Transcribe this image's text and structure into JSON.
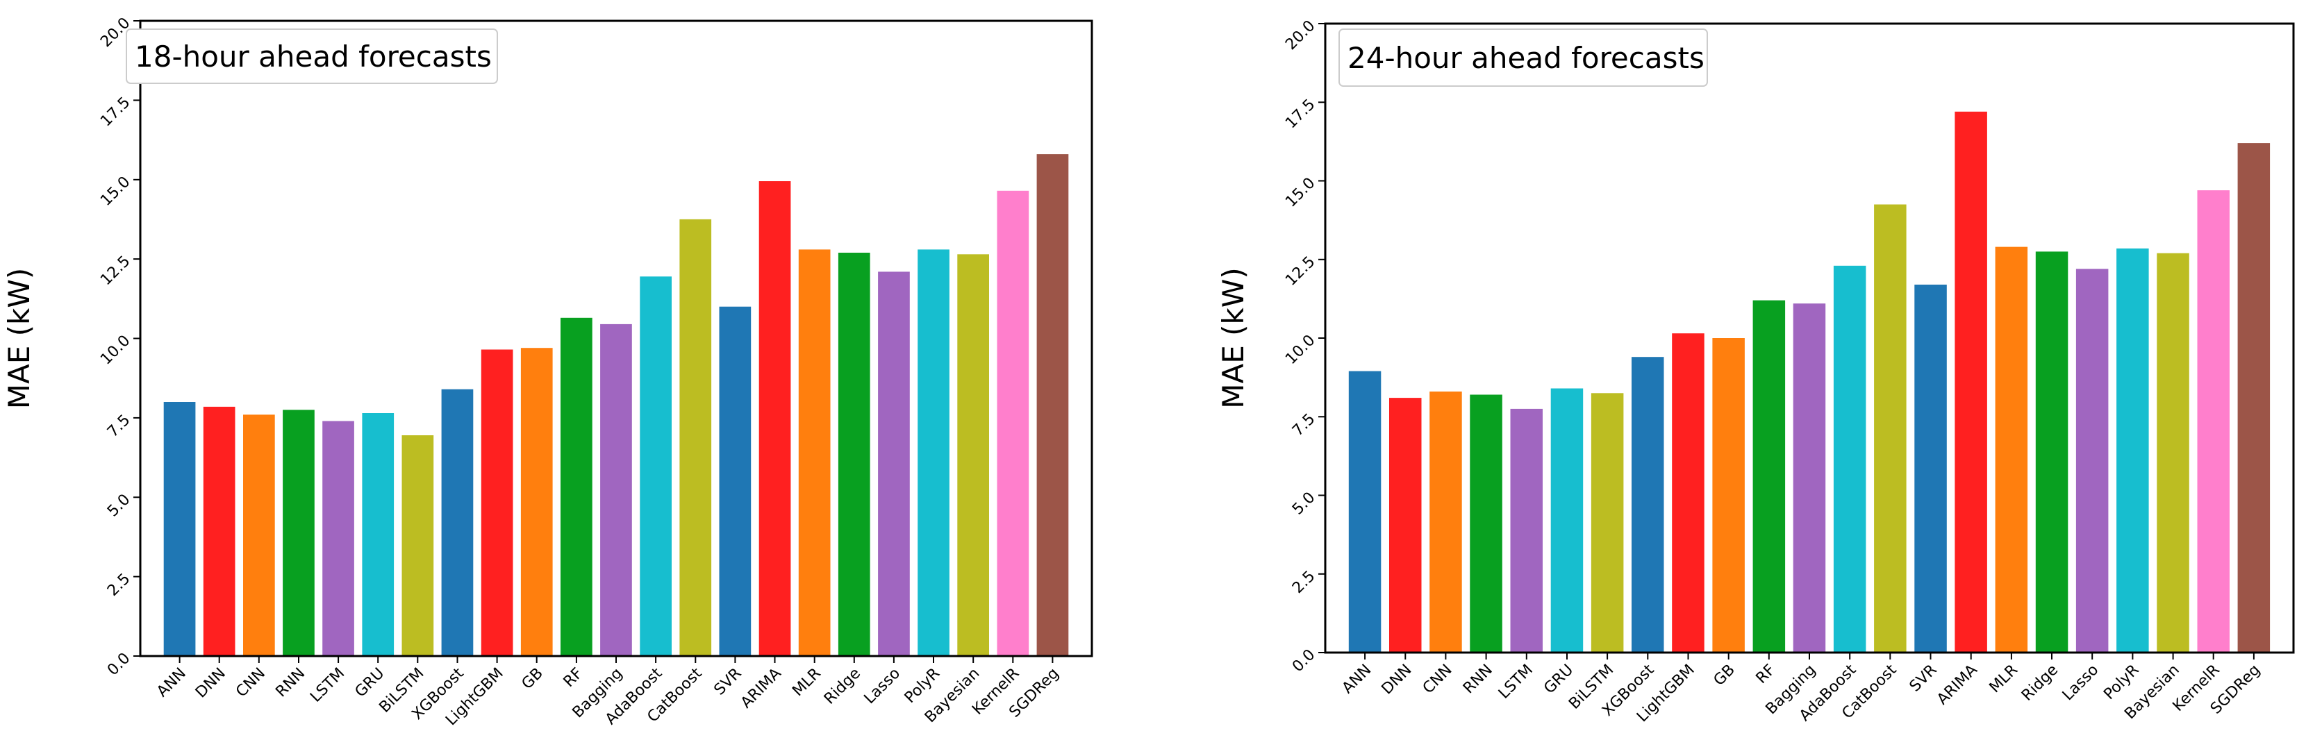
{
  "chart_data": [
    {
      "type": "bar",
      "title": "18-hour ahead forecasts",
      "xlabel": "",
      "ylabel": "MAE (kW)",
      "ylim": [
        0,
        20
      ],
      "yticks": [
        "0.0",
        "2.5",
        "5.0",
        "7.5",
        "10.0",
        "12.5",
        "15.0",
        "17.5",
        "20.0"
      ],
      "categories": [
        "ANN",
        "DNN",
        "CNN",
        "RNN",
        "LSTM",
        "GRU",
        "BiLSTM",
        "XGBoost",
        "LightGBM",
        "GB",
        "RF",
        "Bagging",
        "AdaBoost",
        "CatBoost",
        "SVR",
        "ARIMA",
        "MLR",
        "Ridge",
        "Lasso",
        "PolyR",
        "Bayesian",
        "KernelR",
        "SGDReg"
      ],
      "values": [
        8.0,
        7.85,
        7.6,
        7.75,
        7.4,
        7.65,
        6.95,
        8.4,
        9.65,
        9.7,
        10.65,
        10.45,
        11.95,
        13.75,
        11.0,
        14.95,
        12.8,
        12.7,
        12.1,
        12.8,
        12.65,
        14.65,
        15.8
      ],
      "colors": [
        "#1f77b4",
        "#ff2020",
        "#ff7f0e",
        "#08a020",
        "#a066c0",
        "#17becf",
        "#bcbd22",
        "#1f77b4",
        "#ff2020",
        "#ff7f0e",
        "#08a020",
        "#a066c0",
        "#17becf",
        "#bcbd22",
        "#1f77b4",
        "#ff2020",
        "#ff7f0e",
        "#08a020",
        "#a066c0",
        "#17becf",
        "#bcbd22",
        "#ff7fcc",
        "#9c5548"
      ],
      "legend_position": "top-left",
      "grid": false
    },
    {
      "type": "bar",
      "title": "24-hour ahead forecasts",
      "xlabel": "",
      "ylabel": "MAE (kW)",
      "ylim": [
        0,
        20
      ],
      "yticks": [
        "0.0",
        "2.5",
        "5.0",
        "7.5",
        "10.0",
        "12.5",
        "15.0",
        "17.5",
        "20.0"
      ],
      "categories": [
        "ANN",
        "DNN",
        "CNN",
        "RNN",
        "LSTM",
        "GRU",
        "BiLSTM",
        "XGBoost",
        "LightGBM",
        "GB",
        "RF",
        "Bagging",
        "AdaBoost",
        "CatBoost",
        "SVR",
        "ARIMA",
        "MLR",
        "Ridge",
        "Lasso",
        "PolyR",
        "Bayesian",
        "KernelR",
        "SGDReg"
      ],
      "values": [
        8.95,
        8.1,
        8.3,
        8.2,
        7.75,
        8.4,
        8.25,
        9.4,
        10.15,
        10.0,
        11.2,
        11.1,
        12.3,
        14.25,
        11.7,
        17.2,
        12.9,
        12.75,
        12.2,
        12.85,
        12.7,
        14.7,
        16.2
      ],
      "colors": [
        "#1f77b4",
        "#ff2020",
        "#ff7f0e",
        "#08a020",
        "#a066c0",
        "#17becf",
        "#bcbd22",
        "#1f77b4",
        "#ff2020",
        "#ff7f0e",
        "#08a020",
        "#a066c0",
        "#17becf",
        "#bcbd22",
        "#1f77b4",
        "#ff2020",
        "#ff7f0e",
        "#08a020",
        "#a066c0",
        "#17becf",
        "#bcbd22",
        "#ff7fcc",
        "#9c5548"
      ],
      "legend_position": "top-left",
      "grid": false
    }
  ]
}
